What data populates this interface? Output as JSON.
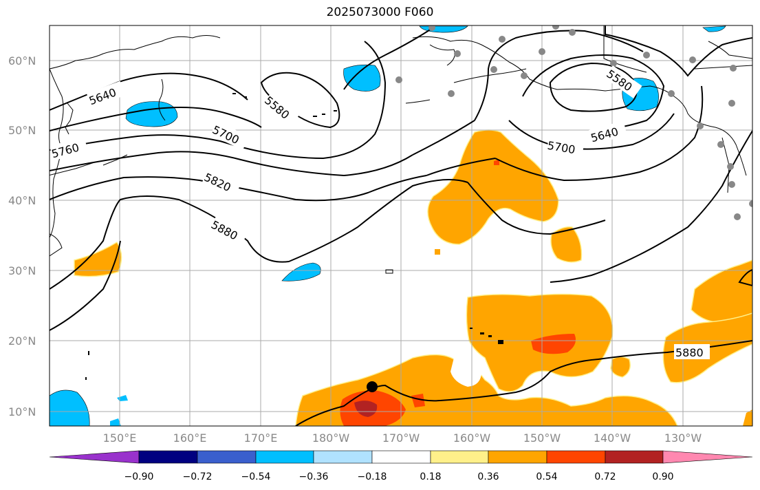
{
  "title": "2025073000 F060",
  "colors": {
    "purple": "#9932cc",
    "navy": "#000080",
    "blue": "#3a5fcd",
    "sky": "#00bfff",
    "pale_blue": "#b0e2ff",
    "white": "#ffffff",
    "pale_yellow": "#fff08a",
    "orange": "#ffa500",
    "red_orange": "#ff4500",
    "dark_red": "#b22222",
    "pink": "#ff88b0"
  },
  "lat_labels": [
    "10°N",
    "20°N",
    "30°N",
    "40°N",
    "50°N",
    "60°N"
  ],
  "lon_labels": [
    "150°E",
    "160°E",
    "170°E",
    "180°W",
    "170°W",
    "160°W",
    "150°W",
    "140°W",
    "130°W"
  ],
  "contour_labels": [
    "5640",
    "5580",
    "5700",
    "5760",
    "5820",
    "5880",
    "5580",
    "5640",
    "5700",
    "5880"
  ],
  "colorbar": {
    "labels": [
      "−0.90",
      "−0.72",
      "−0.54",
      "−0.36",
      "−0.18",
      "0.18",
      "0.36",
      "0.54",
      "0.72",
      "0.90"
    ]
  }
}
